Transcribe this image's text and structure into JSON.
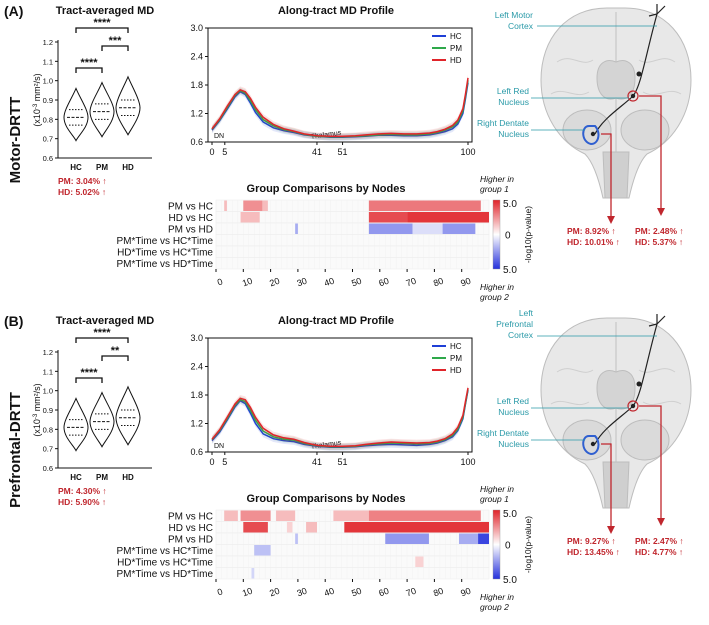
{
  "panels": [
    {
      "label": "(A)",
      "row_label": "Motor-DRTT",
      "violin": {
        "title": "Tract-averaged MD",
        "ylabel_pre": "(x10",
        "ylabel_exp": "-3",
        "ylabel_post": " mm²/s)",
        "yticks": [
          "0.6",
          "0.7",
          "0.8",
          "0.9",
          "1.0",
          "1.1",
          "1.2"
        ],
        "groups": [
          "HC",
          "PM",
          "HD"
        ],
        "sig": [
          "****",
          "***",
          "****"
        ],
        "pct": [
          "PM: 3.04% ↑",
          "HD: 5.02% ↑"
        ]
      },
      "profile": {
        "title": "Along-tract MD Profile",
        "yticks": [
          "0.6",
          "1.2",
          "1.8",
          "2.4",
          "3.0"
        ],
        "xticks": [
          "0",
          "5",
          "41",
          "51",
          "100"
        ],
        "dn": "DN",
        "thalamus": "Thalamus",
        "legend": [
          "HC",
          "PM",
          "HD"
        ]
      },
      "heat": {
        "title": "Group Comparisons by Nodes",
        "rows": [
          "PM vs HC",
          "HD vs HC",
          "PM vs HD",
          "PM*Time vs HC*Time",
          "HD*Time vs HC*Time",
          "PM*Time vs HD*Time"
        ],
        "xticks": [
          "0",
          "10",
          "20",
          "30",
          "40",
          "50",
          "60",
          "70",
          "80",
          "90"
        ],
        "cbar": [
          "5.0",
          "0",
          "5.0"
        ],
        "cbar_label": "-log10(p-value)",
        "higher1": [
          "Higher in",
          "group 1"
        ],
        "higher2": [
          "Higher in",
          "group 2"
        ]
      },
      "brain": {
        "cortex": [
          "Left Motor",
          "Cortex"
        ],
        "red": [
          "Left Red",
          "Nucleus"
        ],
        "dentate": [
          "Right Dentate",
          "Nucleus"
        ],
        "box1": [
          "PM: 8.92% ↑",
          "HD: 10.01% ↑"
        ],
        "box2": [
          "PM: 2.48% ↑",
          "HD: 5.37% ↑"
        ]
      }
    },
    {
      "label": "(B)",
      "row_label": "Prefrontal-DRTT",
      "violin": {
        "title": "Tract-averaged MD",
        "ylabel_pre": "(x10",
        "ylabel_exp": "-3",
        "ylabel_post": " mm²/s)",
        "yticks": [
          "0.6",
          "0.7",
          "0.8",
          "0.9",
          "1.0",
          "1.1",
          "1.2"
        ],
        "groups": [
          "HC",
          "PM",
          "HD"
        ],
        "sig": [
          "****",
          "**",
          "****"
        ],
        "pct": [
          "PM: 4.30% ↑",
          "HD: 5.90% ↑"
        ]
      },
      "profile": {
        "title": "Along-tract MD Profile",
        "yticks": [
          "0.6",
          "1.2",
          "1.8",
          "2.4",
          "3.0"
        ],
        "xticks": [
          "0",
          "5",
          "41",
          "51",
          "100"
        ],
        "dn": "DN",
        "thalamus": "Thalamus",
        "legend": [
          "HC",
          "PM",
          "HD"
        ]
      },
      "heat": {
        "title": "Group Comparisons by Nodes",
        "rows": [
          "PM vs HC",
          "HD vs HC",
          "PM vs HD",
          "PM*Time vs HC*Time",
          "HD*Time vs HC*Time",
          "PM*Time vs HD*Time"
        ],
        "xticks": [
          "0",
          "10",
          "20",
          "30",
          "40",
          "50",
          "60",
          "70",
          "80",
          "90"
        ],
        "cbar": [
          "5.0",
          "0",
          "5.0"
        ],
        "cbar_label": "-log10(p-value)",
        "higher1": [
          "Higher in",
          "group 1"
        ],
        "higher2": [
          "Higher in",
          "group 2"
        ]
      },
      "brain": {
        "cortex": [
          "Left",
          "Prefrontal",
          "Cortex"
        ],
        "red": [
          "Left Red",
          "Nucleus"
        ],
        "dentate": [
          "Right Dentate",
          "Nucleus"
        ],
        "box1": [
          "PM: 9.27% ↑",
          "HD: 13.45% ↑"
        ],
        "box2": [
          "PM: 2.47% ↑",
          "HD: 4.77% ↑"
        ]
      }
    }
  ],
  "colors": {
    "HC": "#1f3fd6",
    "PM": "#2ea84a",
    "HD": "#e0242a",
    "accent": "#c0262d",
    "teal": "#2a9aa8"
  },
  "chart_data": [
    {
      "type": "line",
      "title": "Along-tract MD Profile (Motor-DRTT)",
      "xlim": [
        0,
        100
      ],
      "ylim": [
        0.6,
        3.0
      ],
      "x": [
        0,
        3,
        6,
        9,
        11,
        13,
        15,
        17,
        20,
        24,
        28,
        32,
        36,
        41,
        46,
        51,
        56,
        60,
        65,
        70,
        75,
        80,
        85,
        88,
        91,
        94,
        96,
        98,
        99,
        100
      ],
      "series": [
        {
          "name": "HC",
          "values": [
            0.85,
            1.05,
            1.3,
            1.55,
            1.66,
            1.6,
            1.42,
            1.22,
            1.02,
            0.9,
            0.84,
            0.8,
            0.75,
            0.72,
            0.7,
            0.7,
            0.71,
            0.72,
            0.74,
            0.74,
            0.73,
            0.73,
            0.75,
            0.78,
            0.82,
            0.88,
            0.98,
            1.2,
            1.5,
            1.85
          ]
        },
        {
          "name": "PM",
          "values": [
            0.87,
            1.07,
            1.33,
            1.58,
            1.68,
            1.63,
            1.47,
            1.28,
            1.07,
            0.94,
            0.86,
            0.82,
            0.76,
            0.72,
            0.71,
            0.71,
            0.72,
            0.73,
            0.75,
            0.76,
            0.75,
            0.75,
            0.77,
            0.8,
            0.85,
            0.92,
            1.02,
            1.25,
            1.55,
            1.9
          ]
        },
        {
          "name": "HD",
          "values": [
            0.88,
            1.09,
            1.36,
            1.6,
            1.7,
            1.66,
            1.52,
            1.33,
            1.12,
            0.97,
            0.88,
            0.83,
            0.77,
            0.73,
            0.72,
            0.72,
            0.73,
            0.75,
            0.77,
            0.78,
            0.77,
            0.77,
            0.79,
            0.82,
            0.87,
            0.95,
            1.06,
            1.3,
            1.6,
            1.95
          ]
        }
      ]
    },
    {
      "type": "line",
      "title": "Along-tract MD Profile (Prefrontal-DRTT)",
      "xlim": [
        0,
        100
      ],
      "ylim": [
        0.6,
        3.0
      ],
      "x": [
        0,
        3,
        6,
        9,
        11,
        13,
        15,
        17,
        20,
        24,
        28,
        32,
        36,
        41,
        46,
        51,
        56,
        60,
        65,
        70,
        75,
        80,
        85,
        88,
        91,
        94,
        96,
        98,
        99,
        100
      ],
      "series": [
        {
          "name": "HC",
          "values": [
            0.84,
            1.02,
            1.28,
            1.55,
            1.68,
            1.62,
            1.42,
            1.2,
            0.98,
            0.88,
            0.84,
            0.82,
            0.76,
            0.72,
            0.7,
            0.7,
            0.71,
            0.73,
            0.75,
            0.76,
            0.75,
            0.74,
            0.76,
            0.79,
            0.84,
            0.92,
            1.05,
            1.3,
            1.6,
            1.9
          ]
        },
        {
          "name": "PM",
          "values": [
            0.86,
            1.05,
            1.31,
            1.58,
            1.7,
            1.66,
            1.48,
            1.27,
            1.04,
            0.92,
            0.87,
            0.85,
            0.78,
            0.73,
            0.71,
            0.71,
            0.72,
            0.75,
            0.77,
            0.79,
            0.78,
            0.77,
            0.78,
            0.81,
            0.86,
            0.95,
            1.08,
            1.33,
            1.62,
            1.92
          ]
        },
        {
          "name": "HD",
          "values": [
            0.87,
            1.07,
            1.34,
            1.61,
            1.73,
            1.7,
            1.54,
            1.33,
            1.1,
            0.96,
            0.9,
            0.87,
            0.8,
            0.74,
            0.72,
            0.72,
            0.73,
            0.76,
            0.79,
            0.81,
            0.8,
            0.79,
            0.8,
            0.83,
            0.88,
            0.98,
            1.12,
            1.37,
            1.66,
            1.95
          ]
        }
      ]
    },
    {
      "type": "heatmap",
      "title": "Group Comparisons by Nodes (Motor-DRTT)",
      "rows": [
        "PM vs HC",
        "HD vs HC",
        "PM vs HD",
        "PM*Time vs HC*Time",
        "HD*Time vs HC*Time",
        "PM*Time vs HD*Time"
      ],
      "xlim": [
        0,
        100
      ],
      "clim": [
        -5,
        5
      ],
      "segments": [
        [
          [
            3,
            4,
            1.5
          ],
          [
            10,
            17,
            2.5
          ],
          [
            17,
            19,
            1.5
          ],
          [
            56,
            97,
            3.0
          ]
        ],
        [
          [
            9,
            16,
            1.5
          ],
          [
            56,
            70,
            4.0
          ],
          [
            70,
            100,
            4.5
          ]
        ],
        [
          [
            29,
            30,
            -2.0
          ],
          [
            56,
            72,
            -2.5
          ],
          [
            72,
            83,
            -0.8
          ],
          [
            83,
            95,
            -2.5
          ]
        ],
        [],
        [],
        []
      ]
    },
    {
      "type": "heatmap",
      "title": "Group Comparisons by Nodes (Prefrontal-DRTT)",
      "rows": [
        "PM vs HC",
        "HD vs HC",
        "PM vs HD",
        "PM*Time vs HC*Time",
        "HD*Time vs HC*Time",
        "PM*Time vs HD*Time"
      ],
      "xlim": [
        0,
        100
      ],
      "clim": [
        -5,
        5
      ],
      "segments": [
        [
          [
            3,
            8,
            1.5
          ],
          [
            9,
            20,
            2.5
          ],
          [
            22,
            29,
            1.5
          ],
          [
            43,
            56,
            1.5
          ],
          [
            56,
            97,
            2.8
          ]
        ],
        [
          [
            10,
            19,
            4.0
          ],
          [
            26,
            28,
            1.0
          ],
          [
            33,
            37,
            1.5
          ],
          [
            47,
            100,
            4.5
          ]
        ],
        [
          [
            29,
            30,
            -1.5
          ],
          [
            62,
            78,
            -2.5
          ],
          [
            89,
            96,
            -2.0
          ],
          [
            96,
            100,
            -4.5
          ]
        ],
        [
          [
            14,
            20,
            -1.5
          ]
        ],
        [
          [
            73,
            76,
            1.0
          ]
        ],
        [
          [
            13,
            14,
            -1.0
          ]
        ]
      ]
    }
  ]
}
